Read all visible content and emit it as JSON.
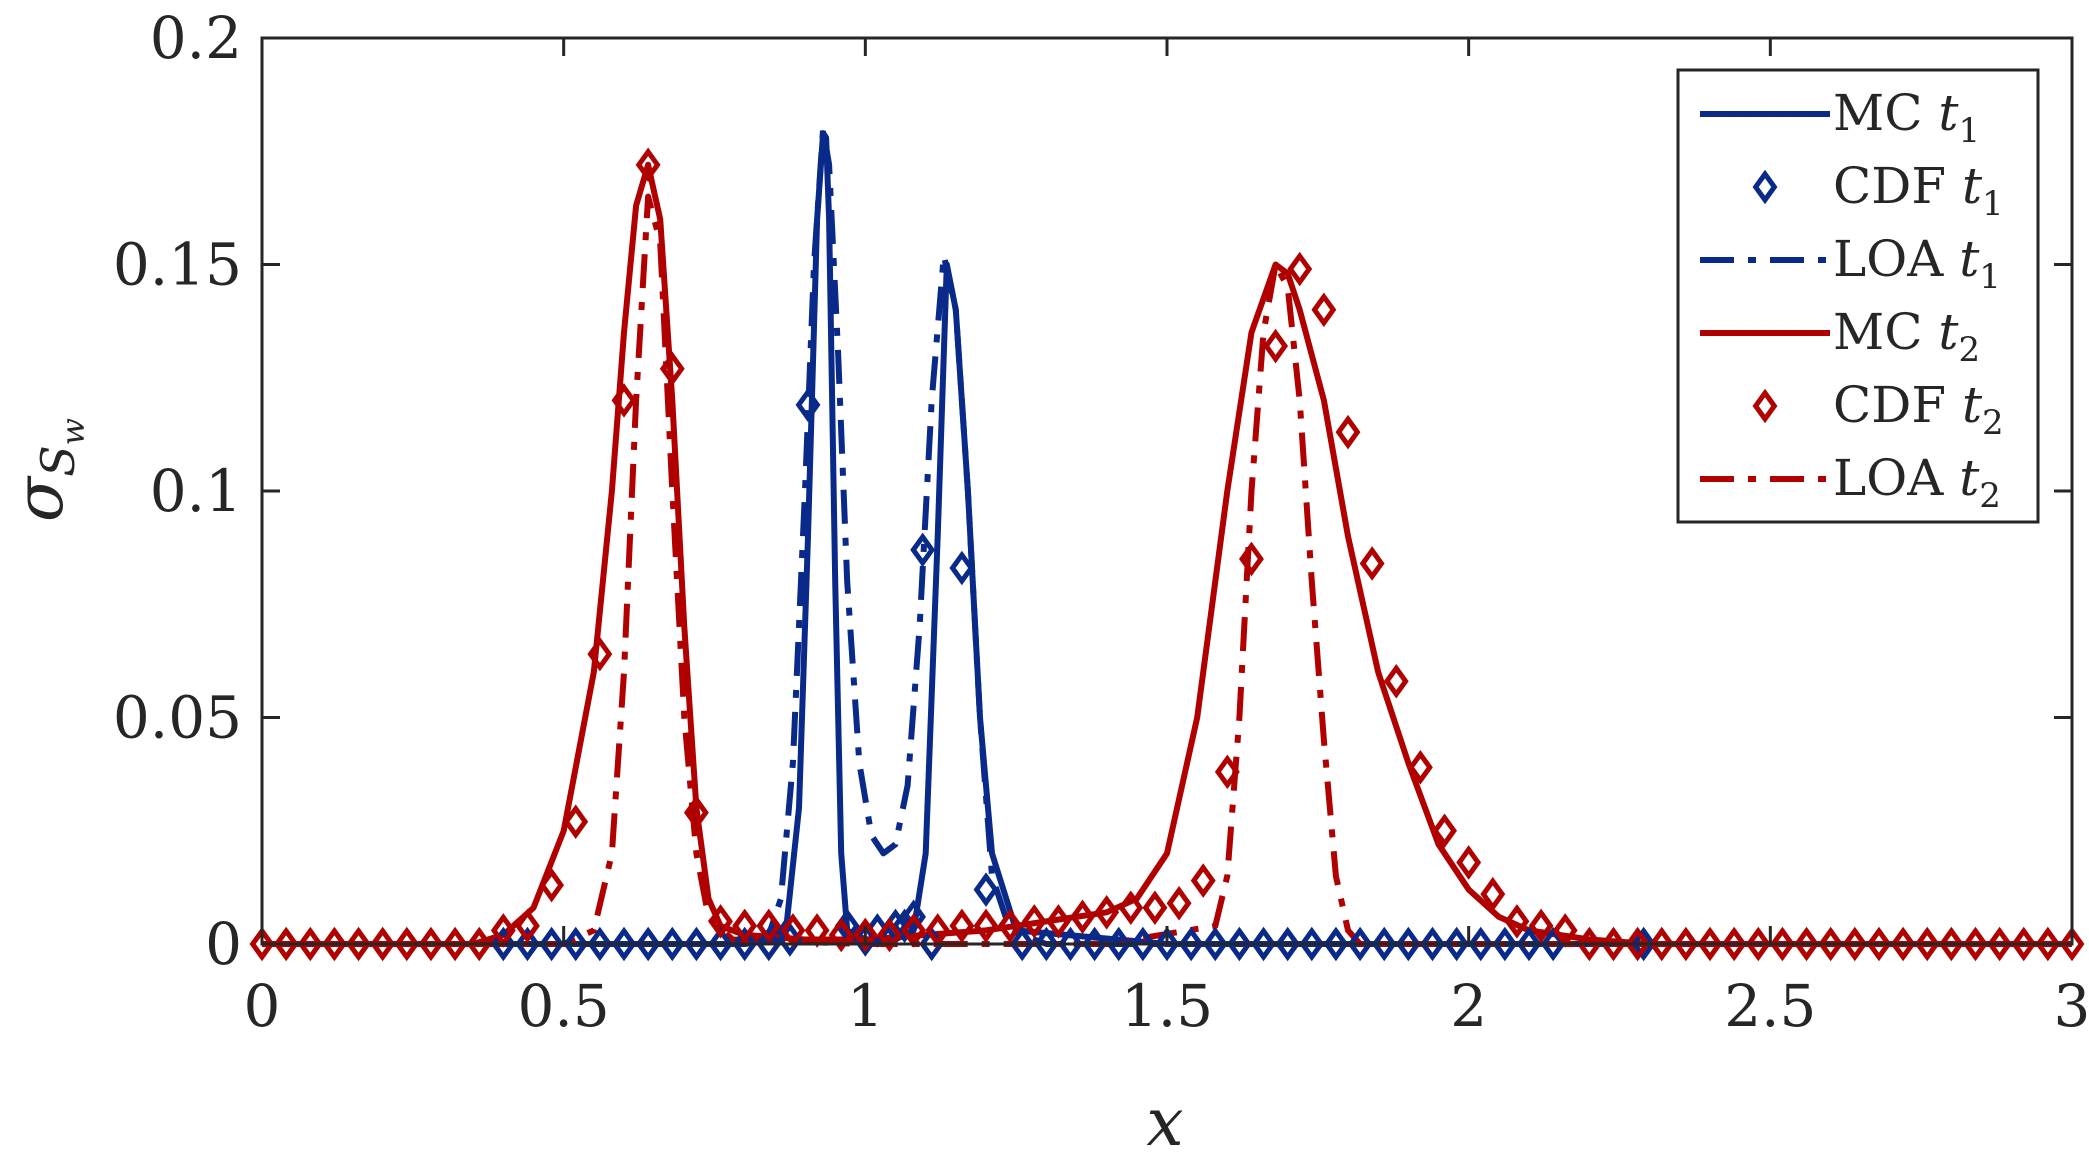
{
  "chart_data": {
    "type": "line",
    "xlabel": "x",
    "ylabel": "σ",
    "ylabel_subscript": "S",
    "ylabel_subsubscript": "w",
    "xlim": [
      0,
      3
    ],
    "ylim": [
      0,
      0.2
    ],
    "xticks": [
      0,
      0.5,
      1,
      1.5,
      2,
      2.5,
      3
    ],
    "xtick_labels": [
      "0",
      "0.5",
      "1",
      "1.5",
      "2",
      "2.5",
      "3"
    ],
    "yticks": [
      0,
      0.05,
      0.1,
      0.15,
      0.2
    ],
    "ytick_labels": [
      "0",
      "0.05",
      "0.1",
      "0.15",
      "0.2"
    ],
    "grid": false,
    "legend_position": "top-right",
    "colors": {
      "blue": "#0a2a8a",
      "red": "#b00000",
      "axis": "#262626"
    },
    "series": [
      {
        "name": "MC t1",
        "legend_label": "MC",
        "legend_subscript": "1",
        "style": "solid",
        "color": "#0a2a8a",
        "marker": "none",
        "x": [
          0.0,
          0.4,
          0.8,
          0.85,
          0.87,
          0.89,
          0.905,
          0.92,
          0.93,
          0.935,
          0.94,
          0.95,
          0.96,
          0.97,
          1.0,
          1.05,
          1.08,
          1.1,
          1.12,
          1.135,
          1.15,
          1.17,
          1.19,
          1.21,
          1.25,
          1.5,
          2.5,
          3.0
        ],
        "y": [
          0.0,
          0.0,
          0.0,
          0.001,
          0.005,
          0.03,
          0.09,
          0.16,
          0.179,
          0.178,
          0.16,
          0.08,
          0.02,
          0.003,
          0.001,
          0.001,
          0.003,
          0.02,
          0.09,
          0.15,
          0.14,
          0.1,
          0.05,
          0.02,
          0.003,
          0.0,
          0.0,
          0.0
        ]
      },
      {
        "name": "CDF t1",
        "legend_label": "CDF",
        "legend_subscript": "1",
        "style": "none",
        "color": "#0a2a8a",
        "marker": "diamond",
        "x": [
          0.4,
          0.44,
          0.48,
          0.52,
          0.56,
          0.6,
          0.64,
          0.68,
          0.72,
          0.76,
          0.8,
          0.84,
          0.875,
          0.905,
          0.97,
          1.0,
          1.02,
          1.05,
          1.065,
          1.08,
          1.095,
          1.11,
          1.16,
          1.2,
          1.26,
          1.3,
          1.34,
          1.38,
          1.42,
          1.46,
          1.5,
          1.54,
          1.58,
          1.62,
          1.66,
          1.7,
          1.74,
          1.78,
          1.82,
          1.86,
          1.9,
          1.94,
          1.98,
          2.02,
          2.06,
          2.1,
          2.14,
          2.29
        ],
        "y": [
          0.0,
          0.0,
          0.0,
          0.0,
          0.0,
          0.0,
          0.0,
          0.0,
          0.0,
          0.0,
          0.0,
          0.0,
          0.001,
          0.119,
          0.004,
          0.001,
          0.003,
          0.004,
          0.004,
          0.006,
          0.087,
          0.0,
          0.083,
          0.012,
          0.0,
          0.0,
          0.0,
          0.0,
          0.0,
          0.0,
          0.0,
          0.0,
          0.0,
          0.0,
          0.0,
          0.0,
          0.0,
          0.0,
          0.0,
          0.0,
          0.0,
          0.0,
          0.0,
          0.0,
          0.0,
          0.0,
          0.0,
          0.0
        ]
      },
      {
        "name": "LOA t1",
        "legend_label": "LOA",
        "legend_subscript": "1",
        "style": "dashdot",
        "color": "#0a2a8a",
        "marker": "none",
        "x": [
          0.0,
          0.5,
          0.8,
          0.84,
          0.86,
          0.88,
          0.9,
          0.915,
          0.93,
          0.94,
          0.955,
          0.97,
          0.99,
          1.01,
          1.03,
          1.05,
          1.07,
          1.09,
          1.11,
          1.13,
          1.15,
          1.17,
          1.19,
          1.21,
          1.24,
          1.3,
          2.0,
          3.0
        ],
        "y": [
          0.0,
          0.0,
          0.0,
          0.002,
          0.01,
          0.04,
          0.1,
          0.15,
          0.18,
          0.172,
          0.13,
          0.08,
          0.04,
          0.024,
          0.02,
          0.022,
          0.035,
          0.07,
          0.12,
          0.152,
          0.14,
          0.1,
          0.05,
          0.015,
          0.003,
          0.0,
          0.0,
          0.0
        ]
      },
      {
        "name": "MC t2",
        "legend_label": "MC",
        "legend_subscript": "2",
        "style": "solid",
        "color": "#b00000",
        "marker": "none",
        "x": [
          0.0,
          0.35,
          0.4,
          0.45,
          0.5,
          0.55,
          0.58,
          0.6,
          0.62,
          0.64,
          0.66,
          0.68,
          0.7,
          0.72,
          0.74,
          0.76,
          0.8,
          0.9,
          1.0,
          1.1,
          1.2,
          1.3,
          1.4,
          1.45,
          1.5,
          1.55,
          1.6,
          1.64,
          1.68,
          1.7,
          1.72,
          1.76,
          1.8,
          1.85,
          1.9,
          1.95,
          2.0,
          2.05,
          2.1,
          2.2,
          2.3,
          3.0
        ],
        "y": [
          0.0,
          0.0,
          0.002,
          0.008,
          0.025,
          0.06,
          0.1,
          0.135,
          0.163,
          0.172,
          0.16,
          0.12,
          0.07,
          0.03,
          0.01,
          0.004,
          0.002,
          0.001,
          0.001,
          0.002,
          0.003,
          0.005,
          0.007,
          0.01,
          0.02,
          0.05,
          0.1,
          0.135,
          0.15,
          0.148,
          0.14,
          0.12,
          0.09,
          0.06,
          0.04,
          0.022,
          0.012,
          0.006,
          0.003,
          0.001,
          0.0,
          0.0
        ]
      },
      {
        "name": "CDF t2",
        "legend_label": "CDF",
        "legend_subscript": "2",
        "style": "none",
        "color": "#b00000",
        "marker": "diamond",
        "x": [
          0.0,
          0.04,
          0.08,
          0.12,
          0.16,
          0.2,
          0.24,
          0.28,
          0.32,
          0.36,
          0.4,
          0.44,
          0.48,
          0.52,
          0.56,
          0.6,
          0.64,
          0.68,
          0.72,
          0.76,
          0.8,
          0.84,
          0.88,
          0.92,
          0.96,
          1.0,
          1.04,
          1.08,
          1.12,
          1.16,
          1.2,
          1.24,
          1.28,
          1.32,
          1.36,
          1.4,
          1.44,
          1.48,
          1.52,
          1.56,
          1.6,
          1.64,
          1.68,
          1.72,
          1.76,
          1.8,
          1.84,
          1.88,
          1.92,
          1.96,
          2.0,
          2.04,
          2.08,
          2.12,
          2.16,
          2.2,
          2.24,
          2.28,
          2.32,
          2.36,
          2.4,
          2.44,
          2.48,
          2.52,
          2.56,
          2.6,
          2.64,
          2.68,
          2.72,
          2.76,
          2.8,
          2.84,
          2.88,
          2.92,
          2.96,
          3.0
        ],
        "y": [
          0.0,
          0.0,
          0.0,
          0.0,
          0.0,
          0.0,
          0.0,
          0.0,
          0.0,
          0.0,
          0.003,
          0.004,
          0.013,
          0.027,
          0.064,
          0.12,
          0.172,
          0.127,
          0.029,
          0.005,
          0.004,
          0.004,
          0.003,
          0.003,
          0.002,
          0.002,
          0.002,
          0.003,
          0.003,
          0.004,
          0.004,
          0.004,
          0.005,
          0.005,
          0.006,
          0.007,
          0.008,
          0.008,
          0.009,
          0.014,
          0.038,
          0.085,
          0.132,
          0.149,
          0.14,
          0.113,
          0.084,
          0.058,
          0.039,
          0.025,
          0.018,
          0.011,
          0.005,
          0.004,
          0.003,
          0.0,
          0.0,
          0.0,
          0.0,
          0.0,
          0.0,
          0.0,
          0.0,
          0.0,
          0.0,
          0.0,
          0.0,
          0.0,
          0.0,
          0.0,
          0.0,
          0.0,
          0.0,
          0.0,
          0.0,
          0.0
        ]
      },
      {
        "name": "LOA t2",
        "legend_label": "LOA",
        "legend_subscript": "2",
        "style": "dashdot",
        "color": "#b00000",
        "marker": "none",
        "x": [
          0.0,
          0.5,
          0.55,
          0.58,
          0.6,
          0.62,
          0.64,
          0.66,
          0.68,
          0.7,
          0.72,
          0.74,
          0.78,
          1.0,
          1.4,
          1.58,
          1.6,
          1.62,
          1.64,
          1.66,
          1.68,
          1.7,
          1.72,
          1.74,
          1.76,
          1.78,
          1.8,
          1.82,
          2.0,
          3.0
        ],
        "y": [
          0.0,
          0.0,
          0.003,
          0.02,
          0.06,
          0.12,
          0.165,
          0.155,
          0.1,
          0.05,
          0.02,
          0.006,
          0.001,
          0.0,
          0.0,
          0.004,
          0.015,
          0.05,
          0.1,
          0.135,
          0.15,
          0.145,
          0.12,
          0.08,
          0.045,
          0.015,
          0.003,
          0.0,
          0.0,
          0.0
        ]
      }
    ]
  }
}
